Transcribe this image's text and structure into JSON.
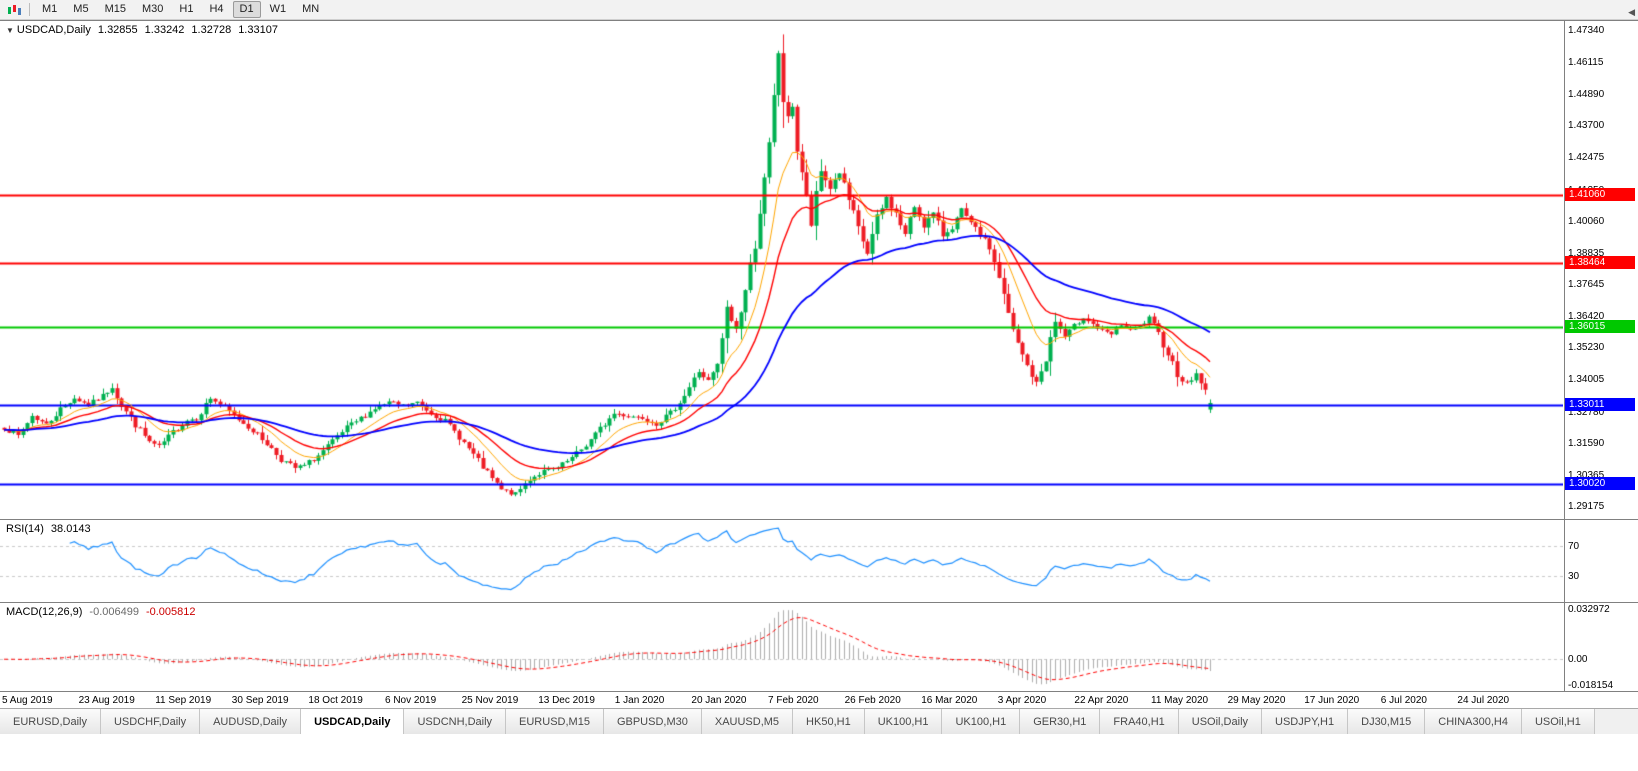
{
  "toolbar": {
    "timeframes": [
      {
        "label": "M1",
        "active": false
      },
      {
        "label": "M5",
        "active": false
      },
      {
        "label": "M15",
        "active": false
      },
      {
        "label": "M30",
        "active": false
      },
      {
        "label": "H1",
        "active": false
      },
      {
        "label": "H4",
        "active": false
      },
      {
        "label": "D1",
        "active": true
      },
      {
        "label": "W1",
        "active": false
      },
      {
        "label": "MN",
        "active": false
      }
    ]
  },
  "chart": {
    "header": {
      "symbol": "USDCAD,Daily",
      "open": "1.32855",
      "high": "1.33242",
      "low": "1.32728",
      "close": "1.33107"
    }
  },
  "rsi_panel": {
    "name": "RSI(14)",
    "value": "38.0143",
    "axis_labels": [
      "70",
      "30"
    ]
  },
  "macd_panel": {
    "name": "MACD(12,26,9)",
    "macd_value": "-0.006499",
    "signal_value": "-0.005812",
    "axis_labels": [
      "0.032972",
      "0.00",
      "-0.018154"
    ]
  },
  "tabs": [
    {
      "label": "EURUSD,Daily",
      "active": false
    },
    {
      "label": "USDCHF,Daily",
      "active": false
    },
    {
      "label": "AUDUSD,Daily",
      "active": false
    },
    {
      "label": "USDCAD,Daily",
      "active": true
    },
    {
      "label": "USDCNH,Daily",
      "active": false
    },
    {
      "label": "EURUSD,M15",
      "active": false
    },
    {
      "label": "GBPUSD,M30",
      "active": false
    },
    {
      "label": "XAUUSD,M5",
      "active": false
    },
    {
      "label": "HK50,H1",
      "active": false
    },
    {
      "label": "UK100,H1",
      "active": false
    },
    {
      "label": "UK100,H1",
      "active": false
    },
    {
      "label": "GER30,H1",
      "active": false
    },
    {
      "label": "FRA40,H1",
      "active": false
    },
    {
      "label": "USOil,Daily",
      "active": false
    },
    {
      "label": "USDJPY,H1",
      "active": false
    },
    {
      "label": "DJ30,M15",
      "active": false
    },
    {
      "label": "CHINA300,H4",
      "active": false
    },
    {
      "label": "USOil,H1",
      "active": false
    }
  ],
  "tab_scroll_icon": "◀",
  "chart_data": {
    "type": "candlestick",
    "symbol": "USDCAD",
    "period": "Daily",
    "last_candle": {
      "o": 1.32855,
      "h": 1.33242,
      "l": 1.32728,
      "c": 1.33107
    },
    "y_axis": {
      "min": 1.2868,
      "max": 1.4768,
      "tick_labels": [
        "1.47340",
        "1.46115",
        "1.44890",
        "1.43700",
        "1.42475",
        "1.41250",
        "1.40060",
        "1.38835",
        "1.37645",
        "1.36420",
        "1.35230",
        "1.34005",
        "1.32780",
        "1.31590",
        "1.30365",
        "1.29175"
      ]
    },
    "x_labels": [
      "5 Aug 2019",
      "23 Aug 2019",
      "11 Sep 2019",
      "30 Sep 2019",
      "18 Oct 2019",
      "6 Nov 2019",
      "25 Nov 2019",
      "13 Dec 2019",
      "1 Jan 2020",
      "20 Jan 2020",
      "7 Feb 2020",
      "26 Feb 2020",
      "16 Mar 2020",
      "3 Apr 2020",
      "22 Apr 2020",
      "11 May 2020",
      "29 May 2020",
      "17 Jun 2020",
      "6 Jul 2020",
      "24 Jul 2020"
    ],
    "horizontal_lines": [
      {
        "price": 1.4106,
        "label": "1.41060",
        "color": "#ff0000"
      },
      {
        "price": 1.38464,
        "label": "1.38464",
        "color": "#ff0000"
      },
      {
        "price": 1.36015,
        "label": "1.36015",
        "color": "#00c800"
      },
      {
        "price": 1.33011,
        "label": "1.33011",
        "color": "#0000ff"
      },
      {
        "price": 1.3002,
        "label": "1.30020",
        "color": "#0000ff"
      }
    ],
    "candles": {
      "count": 258,
      "seed": 7,
      "close_anchors": [
        [
          0,
          1.3215
        ],
        [
          3,
          1.3185
        ],
        [
          6,
          1.3262
        ],
        [
          9,
          1.3228
        ],
        [
          12,
          1.3288
        ],
        [
          15,
          1.333
        ],
        [
          18,
          1.3302
        ],
        [
          21,
          1.3338
        ],
        [
          23,
          1.3375
        ],
        [
          25,
          1.3302
        ],
        [
          28,
          1.3228
        ],
        [
          31,
          1.3162
        ],
        [
          33,
          1.3142
        ],
        [
          36,
          1.32
        ],
        [
          39,
          1.3246
        ],
        [
          41,
          1.3252
        ],
        [
          44,
          1.333
        ],
        [
          47,
          1.3292
        ],
        [
          50,
          1.3248
        ],
        [
          53,
          1.3206
        ],
        [
          56,
          1.3156
        ],
        [
          59,
          1.3096
        ],
        [
          62,
          1.3062
        ],
        [
          64,
          1.3072
        ],
        [
          67,
          1.311
        ],
        [
          70,
          1.3162
        ],
        [
          73,
          1.3215
        ],
        [
          76,
          1.3252
        ],
        [
          79,
          1.329
        ],
        [
          82,
          1.3312
        ],
        [
          85,
          1.33
        ],
        [
          88,
          1.3312
        ],
        [
          91,
          1.3272
        ],
        [
          94,
          1.3242
        ],
        [
          97,
          1.3182
        ],
        [
          100,
          1.3112
        ],
        [
          103,
          1.3042
        ],
        [
          106,
          1.2978
        ],
        [
          109,
          1.2962
        ],
        [
          112,
          1.3022
        ],
        [
          115,
          1.305
        ],
        [
          118,
          1.3062
        ],
        [
          121,
          1.31
        ],
        [
          124,
          1.315
        ],
        [
          127,
          1.3212
        ],
        [
          130,
          1.327
        ],
        [
          133,
          1.3262
        ],
        [
          136,
          1.3255
        ],
        [
          139,
          1.3232
        ],
        [
          142,
          1.3272
        ],
        [
          145,
          1.334
        ],
        [
          148,
          1.3432
        ],
        [
          150,
          1.3392
        ],
        [
          152,
          1.3452
        ],
        [
          154,
          1.366
        ],
        [
          156,
          1.3592
        ],
        [
          158,
          1.374
        ],
        [
          160,
          1.3922
        ],
        [
          161,
          1.405
        ],
        [
          162,
          1.4152
        ],
        [
          163,
          1.4282
        ],
        [
          164,
          1.446
        ],
        [
          165,
          1.4652
        ],
        [
          166,
          1.4472
        ],
        [
          167,
          1.4382
        ],
        [
          168,
          1.4452
        ],
        [
          169,
          1.4282
        ],
        [
          170,
          1.4192
        ],
        [
          171,
          1.4082
        ],
        [
          172,
          1.3992
        ],
        [
          173,
          1.4092
        ],
        [
          174,
          1.4192
        ],
        [
          176,
          1.4132
        ],
        [
          178,
          1.4192
        ],
        [
          180,
          1.4082
        ],
        [
          182,
          1.3972
        ],
        [
          184,
          1.3882
        ],
        [
          186,
          1.4012
        ],
        [
          188,
          1.4092
        ],
        [
          190,
          1.4032
        ],
        [
          192,
          1.3952
        ],
        [
          194,
          1.4062
        ],
        [
          196,
          1.3992
        ],
        [
          198,
          1.4032
        ],
        [
          200,
          1.3952
        ],
        [
          202,
          1.3982
        ],
        [
          204,
          1.4042
        ],
        [
          206,
          1.3992
        ],
        [
          208,
          1.3952
        ],
        [
          210,
          1.3902
        ],
        [
          212,
          1.3792
        ],
        [
          214,
          1.3642
        ],
        [
          216,
          1.3532
        ],
        [
          218,
          1.3452
        ],
        [
          220,
          1.3382
        ],
        [
          222,
          1.3482
        ],
        [
          224,
          1.3622
        ],
        [
          226,
          1.3562
        ],
        [
          228,
          1.3602
        ],
        [
          230,
          1.3642
        ],
        [
          232,
          1.3612
        ],
        [
          234,
          1.3582
        ],
        [
          236,
          1.3572
        ],
        [
          238,
          1.3612
        ],
        [
          240,
          1.3582
        ],
        [
          242,
          1.3602
        ],
        [
          244,
          1.3632
        ],
        [
          246,
          1.3572
        ],
        [
          248,
          1.3502
        ],
        [
          250,
          1.3422
        ],
        [
          252,
          1.3382
        ],
        [
          254,
          1.3422
        ],
        [
          255,
          1.3392
        ],
        [
          256,
          1.3352
        ],
        [
          257,
          1.3311
        ]
      ]
    },
    "colors": {
      "bull": "#00b050",
      "bear": "#ee1c25",
      "ma_fast": "#ffa500",
      "ma_mid": "#ff0000",
      "ma_slow": "#0000ff",
      "rsi": "#1e90ff",
      "rsi_level": "#c8c8c8",
      "macd_hist": "#adadad",
      "macd_signal": "#ff0000",
      "macd_zero": "#c8c8c8"
    },
    "indicators": {
      "moving_averages": [
        {
          "type": "EMA",
          "period": 10,
          "color": "#ffa500"
        },
        {
          "type": "EMA",
          "period": 20,
          "color": "#ff0000"
        },
        {
          "type": "EMA",
          "period": 50,
          "color": "#0000ff"
        }
      ],
      "rsi": {
        "period": 14,
        "current": 38.0143,
        "levels": [
          70,
          30
        ]
      },
      "macd": {
        "fast": 12,
        "slow": 26,
        "signal": 9,
        "current_macd": -0.006499,
        "current_signal": -0.005812,
        "scale_max": 0.0345,
        "scale_min": -0.0195
      }
    }
  }
}
